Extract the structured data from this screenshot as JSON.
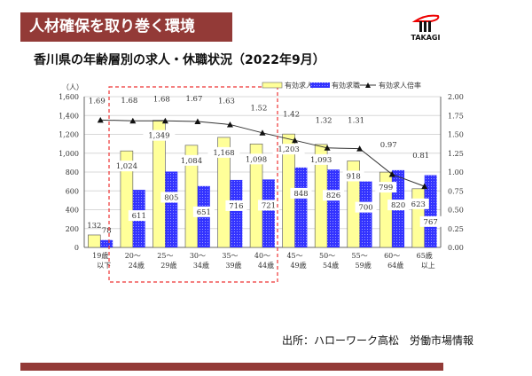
{
  "header": {
    "title": "人材確保を取り巻く環境",
    "logo_text": "TAKAGI"
  },
  "source": "出所：ハローワーク高松　労働市場情報",
  "chart_data": {
    "type": "bar",
    "title": "香川県の年齢層別の求人・休職状況（2022年9月）",
    "ylabel": "（人）",
    "ylim": [
      0,
      1600
    ],
    "y2lim": [
      0,
      2.0
    ],
    "yticks": [
      "0",
      "200",
      "400",
      "600",
      "800",
      "1,000",
      "1,200",
      "1,400",
      "1,600"
    ],
    "y2ticks": [
      "0.00",
      "0.25",
      "0.50",
      "0.75",
      "1.00",
      "1.25",
      "1.50",
      "1.75",
      "2.00"
    ],
    "categories": [
      [
        "19歳",
        "以下"
      ],
      [
        "20～",
        "24歳"
      ],
      [
        "25～",
        "29歳"
      ],
      [
        "30～",
        "34歳"
      ],
      [
        "35～",
        "39歳"
      ],
      [
        "40～",
        "44歳"
      ],
      [
        "45～",
        "49歳"
      ],
      [
        "50～",
        "54歳"
      ],
      [
        "55～",
        "59歳"
      ],
      [
        "60～",
        "64歳"
      ],
      [
        "65歳",
        "以上"
      ]
    ],
    "series": [
      {
        "name": "有効求人",
        "type": "bar",
        "color": "#ffff99",
        "values": [
          132,
          1024,
          1349,
          1084,
          1168,
          1098,
          1203,
          1093,
          918,
          799,
          623
        ],
        "labels": [
          "132",
          "1,024",
          "1,349",
          "1,084",
          "1,168",
          "1,098",
          "1,203",
          "1,093",
          "918",
          "799",
          "623"
        ]
      },
      {
        "name": "有効求職",
        "type": "bar",
        "color": "#3333ff",
        "values": [
          78,
          611,
          805,
          651,
          716,
          721,
          848,
          826,
          700,
          820,
          767
        ],
        "labels": [
          "78",
          "611",
          "805",
          "651",
          "716",
          "721",
          "848",
          "826",
          "700",
          "820",
          "767"
        ]
      },
      {
        "name": "有効求人倍率",
        "type": "line",
        "axis": "right",
        "color": "#333333",
        "values": [
          1.69,
          1.68,
          1.68,
          1.67,
          1.63,
          1.52,
          1.42,
          1.32,
          1.31,
          0.97,
          0.81
        ],
        "labels": [
          "1.69",
          "1.68",
          "1.68",
          "1.67",
          "1.63",
          "1.52",
          "1.42",
          "1.32",
          "1.31",
          "0.97",
          "0.81"
        ]
      }
    ],
    "legend": "top-right",
    "grid": true,
    "highlight": "20～44歳"
  }
}
